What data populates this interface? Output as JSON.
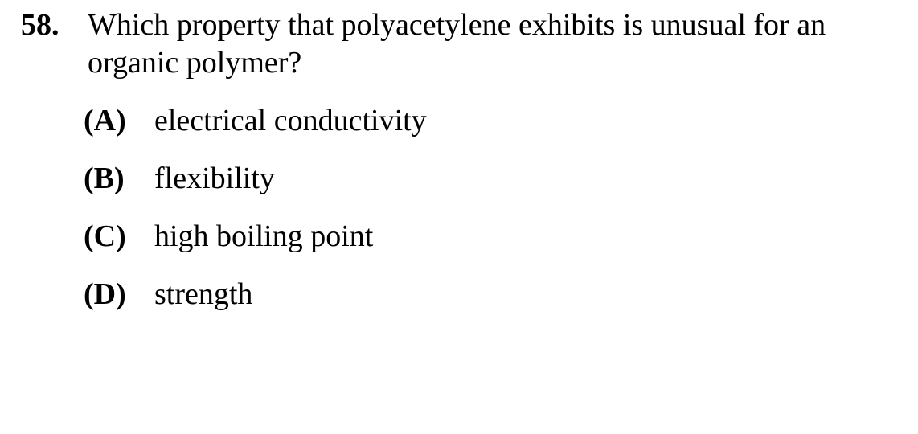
{
  "question": {
    "number": "58.",
    "text": "Which property that polyacetylene exhibits is unusual for an organic polymer?"
  },
  "choices": [
    {
      "letter": "(A)",
      "text": "electrical conductivity"
    },
    {
      "letter": "(B)",
      "text": "flexibility"
    },
    {
      "letter": "(C)",
      "text": "high boiling point"
    },
    {
      "letter": "(D)",
      "text": "strength"
    }
  ]
}
